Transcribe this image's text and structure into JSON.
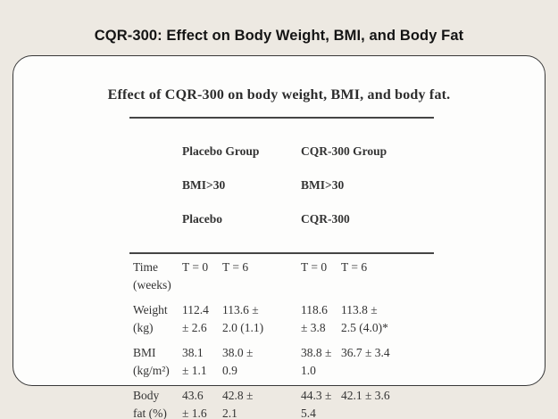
{
  "page": {
    "title": "CQR-300: Effect on Body Weight, BMI, and Body Fat"
  },
  "card": {
    "table_title": "Effect of CQR-300 on body weight, BMI, and body fat.",
    "table": {
      "groups": [
        {
          "name": "Placebo Group",
          "criteria": "BMI>30",
          "treatment": "Placebo"
        },
        {
          "name": "CQR-300 Group",
          "criteria": "BMI>30",
          "treatment": "CQR-300"
        }
      ],
      "time_row": {
        "label": [
          "Time",
          "(weeks)"
        ],
        "cells": [
          "T = 0",
          "T = 6",
          "T = 0",
          "T = 6"
        ]
      },
      "rows": [
        {
          "label": [
            "Weight",
            "(kg)"
          ],
          "cells": [
            [
              "112.4",
              "± 2.6"
            ],
            [
              "113.6 ±",
              "2.0 (1.1)"
            ],
            [
              "118.6",
              "± 3.8"
            ],
            [
              "113.8 ±",
              "2.5 (4.0)*"
            ]
          ]
        },
        {
          "label": [
            "BMI",
            "(kg/m²)"
          ],
          "cells": [
            [
              "38.1",
              "± 1.1"
            ],
            [
              "38.0 ±",
              "0.9"
            ],
            [
              "38.8 ±",
              "1.0"
            ],
            [
              "36.7 ± 3.4"
            ]
          ]
        },
        {
          "label": [
            "Body",
            "fat (%)"
          ],
          "cells": [
            [
              "43.6",
              "± 1.6"
            ],
            [
              "42.8 ±",
              "2.1"
            ],
            [
              "44.3 ±",
              "5.4"
            ],
            [
              "42.1 ± 3.6"
            ]
          ]
        }
      ]
    }
  },
  "colors": {
    "page_background": "#EDE9E2",
    "card_background": "#FDFDFC",
    "card_border": "#383838",
    "title_text": "#141414",
    "table_text": "#333333",
    "table_rule": "#454545"
  }
}
